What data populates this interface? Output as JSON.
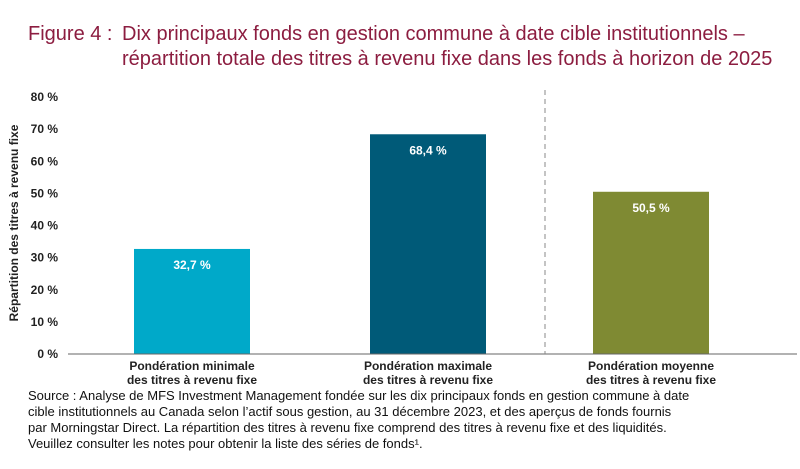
{
  "title": {
    "prefix": "Figure 4 :",
    "line1": "Dix principaux fonds en gestion commune à date cible institutionnels –",
    "line2": "répartition totale des titres à revenu fixe dans les fonds à horizon de 2025"
  },
  "chart_data": {
    "type": "bar",
    "categories": [
      [
        "Pondération minimale",
        "des titres à revenu fixe"
      ],
      [
        "Pondération maximale",
        "des titres à revenu fixe"
      ],
      [
        "Pondération moyenne",
        "des titres à revenu fixe"
      ]
    ],
    "values": [
      32.7,
      68.4,
      50.5
    ],
    "value_labels": [
      "32,7 %",
      "68,4 %",
      "50,5 %"
    ],
    "colors": [
      "#00a9c9",
      "#005a78",
      "#7f8a33"
    ],
    "ylabel": "Répartition des titres à revenu fixe",
    "ylim": [
      0,
      80
    ],
    "yticks": [
      0,
      10,
      20,
      30,
      40,
      50,
      60,
      70,
      80
    ],
    "ytick_labels": [
      "0 %",
      "10 %",
      "20 %",
      "30 %",
      "40 %",
      "50 %",
      "60 %",
      "70 %",
      "80 %"
    ],
    "divider_after_category": 1,
    "grid": false
  },
  "source": [
    "Source : Analyse de MFS Investment Management fondée sur les dix principaux fonds en gestion commune à date",
    "cible institutionnels au Canada selon l’actif sous gestion, au 31 décembre 2023, et des aperçus de fonds fournis",
    "par Morningstar Direct. La répartition des titres à revenu fixe comprend des titres à revenu fixe et des liquidités.",
    "Veuillez consulter les notes pour obtenir la liste des séries de fonds¹."
  ]
}
